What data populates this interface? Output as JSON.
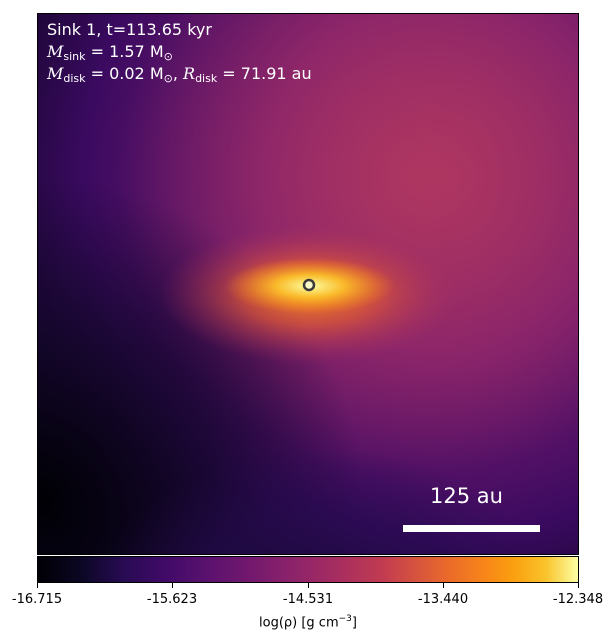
{
  "overlay": {
    "line1": "Sink 1, t=113.65 kyr",
    "m_sink_sym": "M",
    "m_sink_sub": "sink",
    "m_sink_val": " = 1.57 M",
    "m_sink_unit_sub": "⊙",
    "m_disk_sym": "M",
    "m_disk_sub": "disk",
    "m_disk_val": " = 0.02 M",
    "m_disk_unit_sub": "⊙",
    "r_disk_sep": ", ",
    "r_disk_sym": "R",
    "r_disk_sub": "disk",
    "r_disk_val": " = 71.91 au"
  },
  "scale_bar": {
    "label": "125 au"
  },
  "colorbar": {
    "tick_labels": [
      "-16.715",
      "-15.623",
      "-14.531",
      "-13.440",
      "-12.348"
    ],
    "title_main": "log(ρ) [g cm",
    "title_exp": "−3",
    "title_close": "]",
    "colormap": "inferno"
  }
}
